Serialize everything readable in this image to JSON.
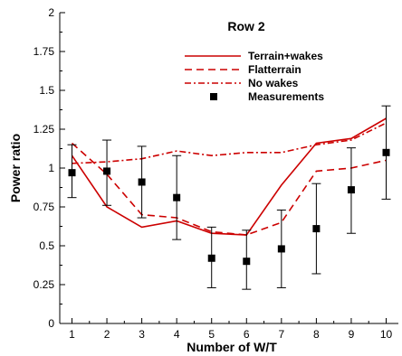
{
  "chart_data": {
    "type": "line",
    "title": "Row 2",
    "xlabel": "Number of W/T",
    "ylabel": "Power ratio",
    "xlim": [
      0.65,
      10.35
    ],
    "ylim": [
      0,
      2
    ],
    "x_ticks": [
      1,
      2,
      3,
      4,
      5,
      6,
      7,
      8,
      9,
      10
    ],
    "x_tick_labels": [
      "1",
      "2",
      "3",
      "4",
      "5",
      "6",
      "7",
      "8",
      "9",
      "10"
    ],
    "y_ticks": [
      0,
      0.25,
      0.5,
      0.75,
      1,
      1.25,
      1.5,
      1.75,
      2
    ],
    "y_tick_labels": [
      "0",
      "0.25",
      "0.5",
      "0.75",
      "1",
      "1.25",
      "1.5",
      "1.75",
      "2"
    ],
    "grid": false,
    "legend_position": "top-right",
    "series": [
      {
        "name": "Terrain+wakes",
        "style": "solid",
        "color": "#cc0000",
        "x": [
          1,
          2,
          3,
          4,
          5,
          6,
          7,
          8,
          9,
          10
        ],
        "y": [
          1.08,
          0.75,
          0.62,
          0.66,
          0.58,
          0.57,
          0.89,
          1.16,
          1.19,
          1.32
        ]
      },
      {
        "name": "Flatterrain",
        "style": "dashed",
        "color": "#cc0000",
        "x": [
          1,
          2,
          3,
          4,
          5,
          6,
          7,
          8,
          9,
          10
        ],
        "y": [
          1.16,
          0.96,
          0.7,
          0.68,
          0.59,
          0.57,
          0.65,
          0.98,
          1.0,
          1.05
        ]
      },
      {
        "name": "No wakes",
        "style": "dashdot",
        "color": "#cc0000",
        "x": [
          1,
          2,
          3,
          4,
          5,
          6,
          7,
          8,
          9,
          10
        ],
        "y": [
          1.03,
          1.04,
          1.06,
          1.11,
          1.08,
          1.1,
          1.1,
          1.15,
          1.18,
          1.29
        ]
      },
      {
        "name": "Measurements",
        "style": "markers",
        "color": "#000000",
        "x": [
          1,
          2,
          3,
          4,
          5,
          6,
          7,
          8,
          9,
          10
        ],
        "y": [
          0.97,
          0.98,
          0.91,
          0.81,
          0.42,
          0.4,
          0.48,
          0.61,
          0.86,
          1.1
        ],
        "error_low": [
          0.81,
          0.76,
          0.68,
          0.54,
          0.23,
          0.22,
          0.23,
          0.32,
          0.58,
          0.8
        ],
        "error_high": [
          1.15,
          1.18,
          1.14,
          1.08,
          0.62,
          0.6,
          0.73,
          0.9,
          1.13,
          1.4
        ]
      }
    ]
  }
}
